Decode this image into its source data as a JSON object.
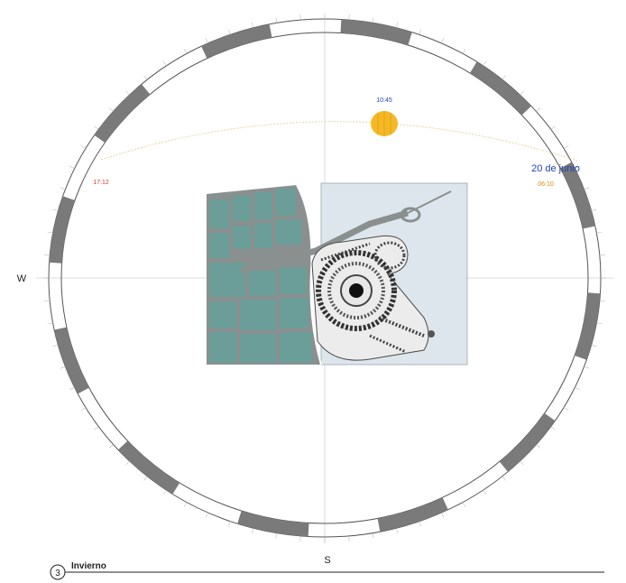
{
  "compass": {
    "west": "W",
    "south": "S"
  },
  "sun": {
    "noon_time": "10:45",
    "sunset_time": "17:12",
    "sunrise_time": "06:10",
    "date": "20 de junio"
  },
  "caption": {
    "number": "3",
    "title": "Invierno"
  },
  "colors": {
    "ring_dark": "#7a7a7a",
    "sun": "#f5b825",
    "sun_path": "#e6d89a",
    "land": "#6b9e98",
    "water": "#dde6ec",
    "road": "#8a8f8f",
    "time_red": "#d23a2a",
    "time_orange": "#d98a1b",
    "label_blue": "#2244aa"
  }
}
